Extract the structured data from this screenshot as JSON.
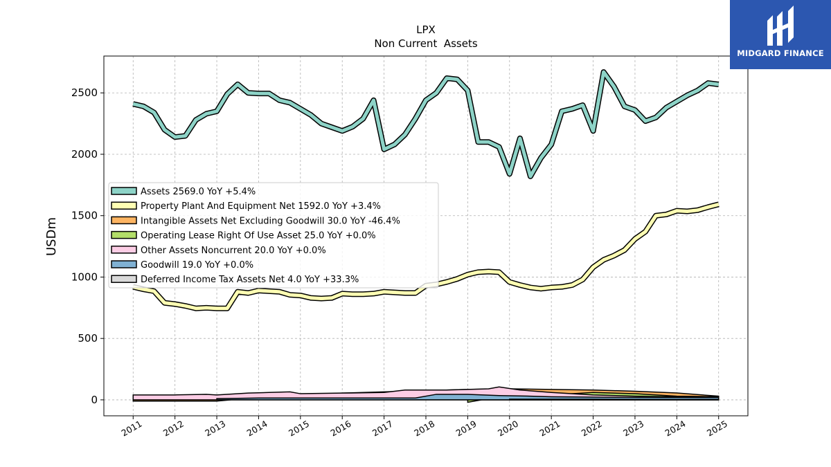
{
  "brand": {
    "name": "MIDGARD FINANCE",
    "color": "#2c57b0"
  },
  "chart_data": {
    "type": "line",
    "title": "LPX",
    "subtitle": "Non Current  Assets",
    "ylabel": "USDm",
    "xlabel": "",
    "ylim": [
      -130,
      2800
    ],
    "yticks": [
      0,
      500,
      1000,
      1500,
      2000,
      2500
    ],
    "xlim": [
      2010.3,
      2025.7
    ],
    "xticks": [
      "2011",
      "2012",
      "2013",
      "2014",
      "2015",
      "2016",
      "2017",
      "2018",
      "2019",
      "2020",
      "2021",
      "2022",
      "2023",
      "2024",
      "2025"
    ],
    "grid": true,
    "legend_position": "center-left",
    "series": [
      {
        "name": "Assets",
        "legend": "Assets  2569.0 YoY +5.4%",
        "color": "#8dd3c7",
        "style": "line",
        "x": [
          2011.0,
          2011.25,
          2011.5,
          2011.75,
          2012.0,
          2012.25,
          2012.5,
          2012.75,
          2013.0,
          2013.25,
          2013.5,
          2013.75,
          2014.0,
          2014.25,
          2014.5,
          2014.75,
          2015.0,
          2015.25,
          2015.5,
          2015.75,
          2016.0,
          2016.25,
          2016.5,
          2016.75,
          2017.0,
          2017.25,
          2017.5,
          2017.75,
          2018.0,
          2018.25,
          2018.5,
          2018.75,
          2019.0,
          2019.25,
          2019.5,
          2019.75,
          2020.0,
          2020.25,
          2020.5,
          2020.75,
          2021.0,
          2021.25,
          2021.5,
          2021.75,
          2022.0,
          2022.25,
          2022.5,
          2022.75,
          2023.0,
          2023.25,
          2023.5,
          2023.75,
          2024.0,
          2024.25,
          2024.5,
          2024.75,
          2025.0
        ],
        "values": [
          2410,
          2390,
          2340,
          2200,
          2140,
          2150,
          2280,
          2330,
          2350,
          2490,
          2570,
          2500,
          2495,
          2495,
          2440,
          2420,
          2370,
          2320,
          2250,
          2220,
          2190,
          2225,
          2290,
          2440,
          2040,
          2080,
          2160,
          2290,
          2440,
          2500,
          2620,
          2610,
          2520,
          2100,
          2100,
          2060,
          1840,
          2130,
          1820,
          1970,
          2080,
          2350,
          2370,
          2400,
          2190,
          2670,
          2550,
          2390,
          2360,
          2270,
          2300,
          2380,
          2430,
          2480,
          2520,
          2580,
          2569
        ]
      },
      {
        "name": "Property Plant And Equipment Net",
        "legend": "Property Plant And Equipment Net  1592.0 YoY +3.4%",
        "color": "#ffffb3",
        "style": "line",
        "x": [
          2011.0,
          2011.25,
          2011.5,
          2011.75,
          2012.0,
          2012.25,
          2012.5,
          2012.75,
          2013.0,
          2013.25,
          2013.5,
          2013.75,
          2014.0,
          2014.25,
          2014.5,
          2014.75,
          2015.0,
          2015.25,
          2015.5,
          2015.75,
          2016.0,
          2016.25,
          2016.5,
          2016.75,
          2017.0,
          2017.25,
          2017.5,
          2017.75,
          2018.0,
          2018.25,
          2018.5,
          2018.75,
          2019.0,
          2019.25,
          2019.5,
          2019.75,
          2020.0,
          2020.25,
          2020.5,
          2020.75,
          2021.0,
          2021.25,
          2021.5,
          2021.75,
          2022.0,
          2022.25,
          2022.5,
          2022.75,
          2023.0,
          2023.25,
          2023.5,
          2023.75,
          2024.0,
          2024.25,
          2024.5,
          2024.75,
          2025.0
        ],
        "values": [
          920,
          900,
          885,
          790,
          780,
          765,
          745,
          750,
          745,
          745,
          880,
          870,
          890,
          885,
          880,
          855,
          850,
          830,
          825,
          830,
          865,
          860,
          860,
          865,
          880,
          875,
          870,
          870,
          930,
          940,
          960,
          985,
          1020,
          1040,
          1045,
          1040,
          960,
          935,
          915,
          905,
          915,
          920,
          935,
          980,
          1080,
          1140,
          1175,
          1220,
          1310,
          1370,
          1500,
          1510,
          1540,
          1535,
          1545,
          1570,
          1592
        ]
      },
      {
        "name": "Intangible Assets Net Excluding Goodwill",
        "legend": "Intangible Assets Net Excluding Goodwill  30.0 YoY -46.4%",
        "color": "#fdb462",
        "style": "area",
        "x": [
          2011.0,
          2012.0,
          2013.0,
          2014.0,
          2015.0,
          2016.0,
          2017.0,
          2018.0,
          2019.0,
          2020.0,
          2021.0,
          2022.0,
          2023.0,
          2024.0,
          2025.0
        ],
        "values": [
          -10,
          -10,
          -10,
          20,
          40,
          55,
          65,
          75,
          85,
          90,
          85,
          80,
          70,
          56,
          30
        ]
      },
      {
        "name": "Operating Lease Right Of Use Asset",
        "legend": "Operating Lease Right Of Use Asset  25.0 YoY +0.0%",
        "color": "#b3de69",
        "style": "area",
        "x": [
          2019.0,
          2019.5,
          2020.0,
          2021.0,
          2022.0,
          2023.0,
          2024.0,
          2025.0
        ],
        "values": [
          -20,
          10,
          30,
          40,
          60,
          50,
          30,
          25
        ]
      },
      {
        "name": "Other Assets Noncurrent",
        "legend": "Other Assets Noncurrent  20.0 YoY +0.0%",
        "color": "#fccde5",
        "style": "area",
        "x": [
          2011.0,
          2012.0,
          2012.75,
          2013.0,
          2013.75,
          2014.25,
          2014.75,
          2015.0,
          2016.0,
          2017.0,
          2017.5,
          2018.0,
          2018.5,
          2019.0,
          2019.5,
          2019.75,
          2020.25,
          2021.0,
          2022.0,
          2023.0,
          2024.0,
          2025.0
        ],
        "values": [
          40,
          40,
          45,
          40,
          55,
          60,
          65,
          50,
          55,
          60,
          80,
          80,
          80,
          85,
          90,
          105,
          80,
          60,
          40,
          30,
          25,
          20
        ]
      },
      {
        "name": "Goodwill",
        "legend": "Goodwill  19.0 YoY +0.0%",
        "color": "#80b1d3",
        "style": "area",
        "x": [
          2013.0,
          2013.5,
          2014.0,
          2015.0,
          2016.0,
          2017.0,
          2017.75,
          2018.25,
          2019.0,
          2019.75,
          2020.5,
          2021.0,
          2022.0,
          2023.0,
          2024.0,
          2025.0
        ],
        "values": [
          10,
          12,
          15,
          15,
          15,
          15,
          15,
          45,
          45,
          35,
          30,
          25,
          22,
          20,
          19,
          19
        ]
      },
      {
        "name": "Deferred Income Tax Assets Net",
        "legend": "Deferred Income Tax Assets Net  4.0 YoY +33.3%",
        "color": "#d9d9d9",
        "style": "area",
        "x": [
          2020.0,
          2021.0,
          2022.0,
          2023.0,
          2024.0,
          2025.0
        ],
        "values": [
          5,
          5,
          5,
          4,
          3,
          4
        ]
      }
    ]
  }
}
